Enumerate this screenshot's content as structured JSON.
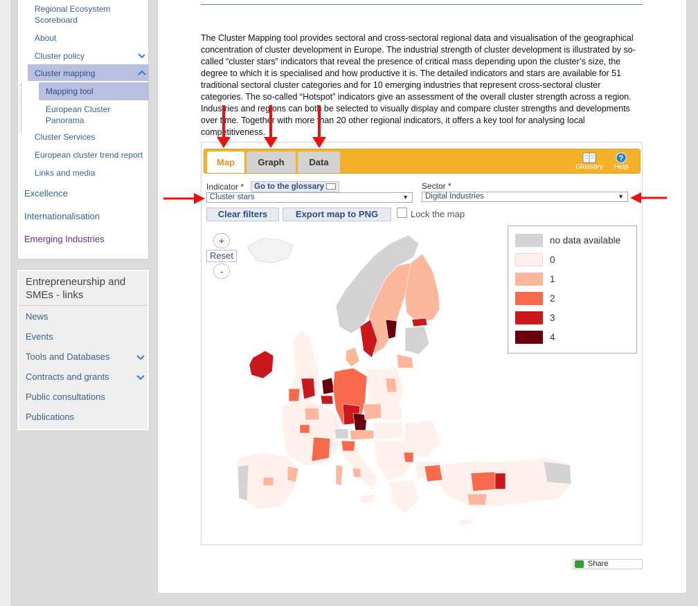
{
  "sidebar": {
    "sub_items": [
      {
        "label": "Regional Ecosystem Scoreboard"
      },
      {
        "label": "About"
      },
      {
        "label": "Cluster policy"
      },
      {
        "label": "Cluster mapping"
      },
      {
        "label": "Mapping tool"
      },
      {
        "label": "European Cluster Panorama"
      },
      {
        "label": "Cluster Services"
      },
      {
        "label": "European cluster trend report"
      },
      {
        "label": "Links and media"
      }
    ],
    "top_items": [
      {
        "label": "Excellence"
      },
      {
        "label": "Internationalisation"
      },
      {
        "label": "Emerging Industries"
      }
    ]
  },
  "links_panel": {
    "title": "Entrepreneurship and SMEs - links",
    "items": [
      {
        "label": "News"
      },
      {
        "label": "Events"
      },
      {
        "label": "Tools and Databases"
      },
      {
        "label": "Contracts and grants"
      },
      {
        "label": "Public consultations"
      },
      {
        "label": "Publications"
      }
    ]
  },
  "intro_text": "The Cluster Mapping tool provides sectoral and cross-sectoral regional data and visualisation of the geographical concentration of cluster development in Europe. The industrial strength of cluster development is illustrated by so-called “cluster stars” indicators that reveal the presence of critical mass depending upon the cluster’s size, the degree to which it is specialised and how productive it is. The detailed indicators and stars are available for 51 traditional sectoral cluster categories and for 10 emerging industries that represent cross-sectoral cluster categories. The so-called “Hotspot” indicators give an assessment of the overall cluster strength across a region. Industries and regions can both be selected to visually display and compare cluster strengths and developments over time. Together with more than 20 other regional indicators, it offers a key tool for analysing local competitiveness.",
  "tool": {
    "tabs": [
      {
        "label": "Map"
      },
      {
        "label": "Graph"
      },
      {
        "label": "Data"
      }
    ],
    "glossary_label": "Glossary",
    "help_label": "Help",
    "indicator_label": "Indicator *",
    "go_glossary": "Go to the glossary",
    "indicator_value": "Cluster stars",
    "sector_label": "Sector *",
    "sector_value": "Digital Industries",
    "clear_filters": "Clear filters",
    "export_png": "Export map to PNG",
    "lock_map": "Lock the map",
    "zoom_in": "+",
    "zoom_reset": "Reset",
    "zoom_out": "-",
    "legend": [
      {
        "label": "no data available",
        "color": "#d3d3d3"
      },
      {
        "label": "0",
        "color": "#fff0eb"
      },
      {
        "label": "1",
        "color": "#fcb79c"
      },
      {
        "label": "2",
        "color": "#f96a4c"
      },
      {
        "label": "3",
        "color": "#cb181d"
      },
      {
        "label": "4",
        "color": "#67000d"
      }
    ]
  },
  "share_label": "Share",
  "colors": {
    "accent": "#f5b12a",
    "annotation_arrow": "#ee1111",
    "link": "#39628f",
    "nav_active": "#b9bfe0"
  }
}
